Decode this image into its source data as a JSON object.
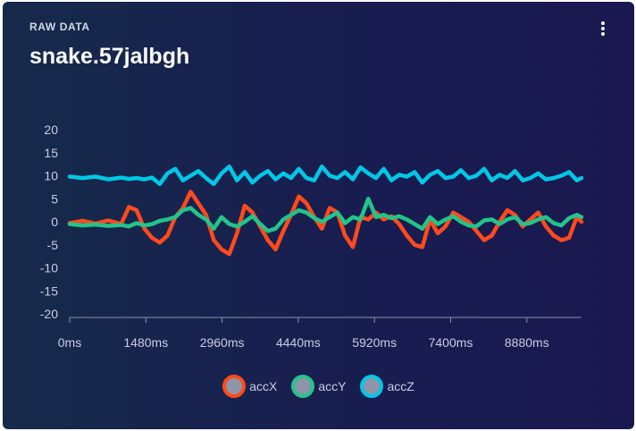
{
  "card": {
    "eyebrow": "RAW DATA",
    "title": "snake.57jalbgh",
    "menu_icon": "more-vertical-icon"
  },
  "chart_data": {
    "type": "line",
    "title": "",
    "xlabel": "",
    "ylabel": "",
    "x_unit": "ms",
    "xlim": [
      0,
      10000
    ],
    "ylim": [
      -20,
      20
    ],
    "y_ticks": [
      "20",
      "15",
      "10",
      "5",
      "0",
      "-5",
      "-10",
      "-15",
      "-20"
    ],
    "x_ticks": [
      "0ms",
      "1480ms",
      "2960ms",
      "4440ms",
      "5920ms",
      "7400ms",
      "8880ms"
    ],
    "grid": false,
    "legend_position": "bottom",
    "x": [
      0,
      250,
      500,
      750,
      1000,
      1150,
      1300,
      1450,
      1600,
      1750,
      1900,
      2050,
      2200,
      2350,
      2500,
      2650,
      2800,
      2950,
      3100,
      3250,
      3400,
      3550,
      3700,
      3850,
      4000,
      4150,
      4300,
      4450,
      4600,
      4750,
      4900,
      5050,
      5200,
      5350,
      5500,
      5650,
      5800,
      5950,
      6100,
      6250,
      6400,
      6550,
      6700,
      6850,
      7000,
      7150,
      7300,
      7450,
      7600,
      7750,
      7900,
      8050,
      8200,
      8350,
      8500,
      8650,
      8800,
      8950,
      9100,
      9250,
      9400,
      9550,
      9700,
      9850,
      10000
    ],
    "series": [
      {
        "name": "accX",
        "color": "#ff4a1c",
        "values": [
          -0.3,
          0.2,
          -0.4,
          0.3,
          -0.5,
          3.2,
          2.5,
          -1.5,
          -3.5,
          -4.5,
          -3,
          1,
          3,
          6.5,
          4,
          1.5,
          -4,
          -6,
          -7,
          -2.5,
          3.5,
          2,
          -1,
          -4,
          -6,
          -2,
          1.5,
          5.5,
          4,
          1,
          -1.5,
          3,
          2,
          -3,
          -5.5,
          1,
          0.5,
          2,
          0.5,
          1.2,
          -0.5,
          -3,
          -5,
          -5.5,
          0.5,
          -2.5,
          -1,
          2,
          1,
          0,
          -2,
          -4,
          -3,
          0,
          2.5,
          1.5,
          -1,
          0.5,
          2,
          -1,
          -3,
          -4,
          -3.5,
          1,
          0
        ]
      },
      {
        "name": "accY",
        "color": "#22c48a",
        "values": [
          -0.5,
          -0.8,
          -0.6,
          -0.9,
          -0.7,
          -1,
          -0.3,
          -0.8,
          -0.5,
          0.2,
          0.5,
          1,
          2.5,
          3,
          1.5,
          0.5,
          -1.5,
          1,
          -0.5,
          -1,
          0,
          1.2,
          -0.5,
          -2,
          -1.5,
          0.5,
          1.5,
          2.5,
          2,
          0.8,
          0,
          1,
          2,
          -0.3,
          1,
          0.5,
          5,
          1,
          1.5,
          0.8,
          1.2,
          0.5,
          -0.5,
          -1.5,
          1,
          -0.5,
          0.5,
          1.2,
          0,
          -0.8,
          -1,
          0.3,
          0.5,
          -0.5,
          0.5,
          1,
          -0.5,
          -0.3,
          0.5,
          1,
          -0.3,
          -0.8,
          0.8,
          1.5,
          1
        ]
      },
      {
        "name": "accZ",
        "color": "#00c8e6",
        "values": [
          9.8,
          9.5,
          9.8,
          9.2,
          9.6,
          9.3,
          9.5,
          9.2,
          9.6,
          8.2,
          10.5,
          11.5,
          9,
          10,
          11,
          9.5,
          8.2,
          10.5,
          12,
          9,
          10.8,
          8.5,
          10,
          11,
          9.2,
          10.5,
          9.5,
          11.5,
          9.5,
          9,
          12,
          10,
          9.5,
          10.8,
          9.2,
          11.8,
          10.5,
          9.5,
          11.5,
          9,
          10.2,
          9.8,
          10.8,
          8.5,
          10.2,
          11,
          9.5,
          9.8,
          11.2,
          9.5,
          10,
          11.5,
          9,
          10.2,
          9.5,
          11,
          9,
          9.5,
          10.5,
          9.2,
          9.5,
          10,
          10.8,
          9,
          9.5
        ]
      }
    ]
  }
}
